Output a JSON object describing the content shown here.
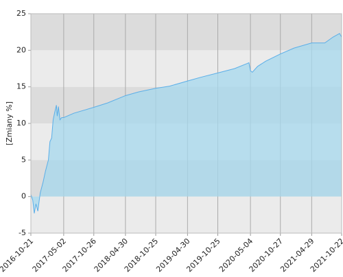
{
  "chart_data": {
    "type": "area",
    "y_label": "[Zmiany %]",
    "x": [
      "2016-10-21",
      "2016-11-01",
      "2016-11-10",
      "2016-11-20",
      "2016-12-01",
      "2016-12-15",
      "2017-01-01",
      "2017-01-15",
      "2017-02-01",
      "2017-02-10",
      "2017-02-20",
      "2017-03-01",
      "2017-03-10",
      "2017-03-20",
      "2017-03-25",
      "2017-04-01",
      "2017-04-10",
      "2017-04-20",
      "2017-05-02",
      "2017-07-01",
      "2017-10-26",
      "2018-01-15",
      "2018-04-30",
      "2018-07-15",
      "2018-10-25",
      "2019-01-15",
      "2019-04-30",
      "2019-07-15",
      "2019-10-25",
      "2020-02-01",
      "2020-04-15",
      "2020-04-25",
      "2020-05-04",
      "2020-05-15",
      "2020-06-15",
      "2020-08-01",
      "2020-10-27",
      "2021-01-15",
      "2021-04-29",
      "2021-07-15",
      "2021-09-01",
      "2021-10-10",
      "2021-10-22"
    ],
    "values": [
      0.3,
      -0.5,
      -2.3,
      -1.0,
      -2.0,
      0.5,
      2.0,
      3.5,
      5.0,
      7.5,
      8.0,
      10.5,
      11.5,
      12.5,
      11.0,
      12.3,
      10.5,
      10.8,
      10.8,
      11.4,
      12.2,
      12.8,
      13.8,
      14.3,
      14.8,
      15.1,
      15.8,
      16.3,
      16.9,
      17.5,
      18.2,
      18.3,
      17.2,
      17.0,
      17.8,
      18.5,
      19.5,
      20.3,
      21.0,
      21.0,
      21.8,
      22.3,
      21.8
    ],
    "color": "#5aaee8",
    "fill": "#a6d8ee",
    "xlim": [
      "2016-10-21",
      "2021-10-22"
    ],
    "xticks": [
      "2016-10-21",
      "2017-05-02",
      "2017-10-26",
      "2018-04-30",
      "2018-10-25",
      "2019-04-30",
      "2019-10-25",
      "2020-05-04",
      "2020-10-27",
      "2021-04-29",
      "2021-10-22"
    ],
    "ylim": [
      -5,
      25
    ],
    "yticks": [
      -5,
      0,
      5,
      10,
      15,
      20,
      25
    ],
    "grid": true
  }
}
